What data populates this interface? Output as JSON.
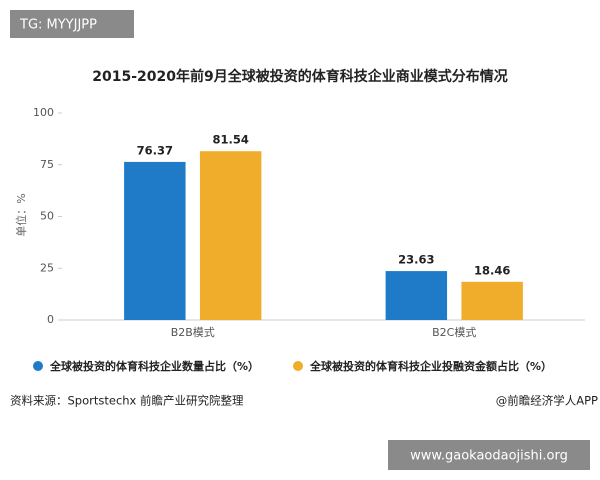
{
  "tag": "TG: MYYJJPP",
  "watermark": "www.gaokaodaojishi.org",
  "chart_data": {
    "type": "bar",
    "title": "2015-2020年前9月全球被投资的体育科技企业商业模式分布情况",
    "y_label": "单位：%",
    "categories": [
      "B2B模式",
      "B2C模式"
    ],
    "series": [
      {
        "name": "全球被投资的体育科技企业数量占比（%）",
        "color": "#1f7bc8",
        "values": [
          76.37,
          23.63
        ]
      },
      {
        "name": "全球被投资的体育科技企业投融资金额占比（%）",
        "color": "#f0ad2b",
        "values": [
          81.54,
          18.46
        ]
      }
    ],
    "ylim": [
      0,
      100
    ],
    "yticks": [
      0,
      25,
      50,
      75,
      100
    ],
    "grid": false,
    "source": "资料来源：Sportstechx 前瞻产业研究院整理",
    "credit": "@前瞻经济学人APP"
  }
}
